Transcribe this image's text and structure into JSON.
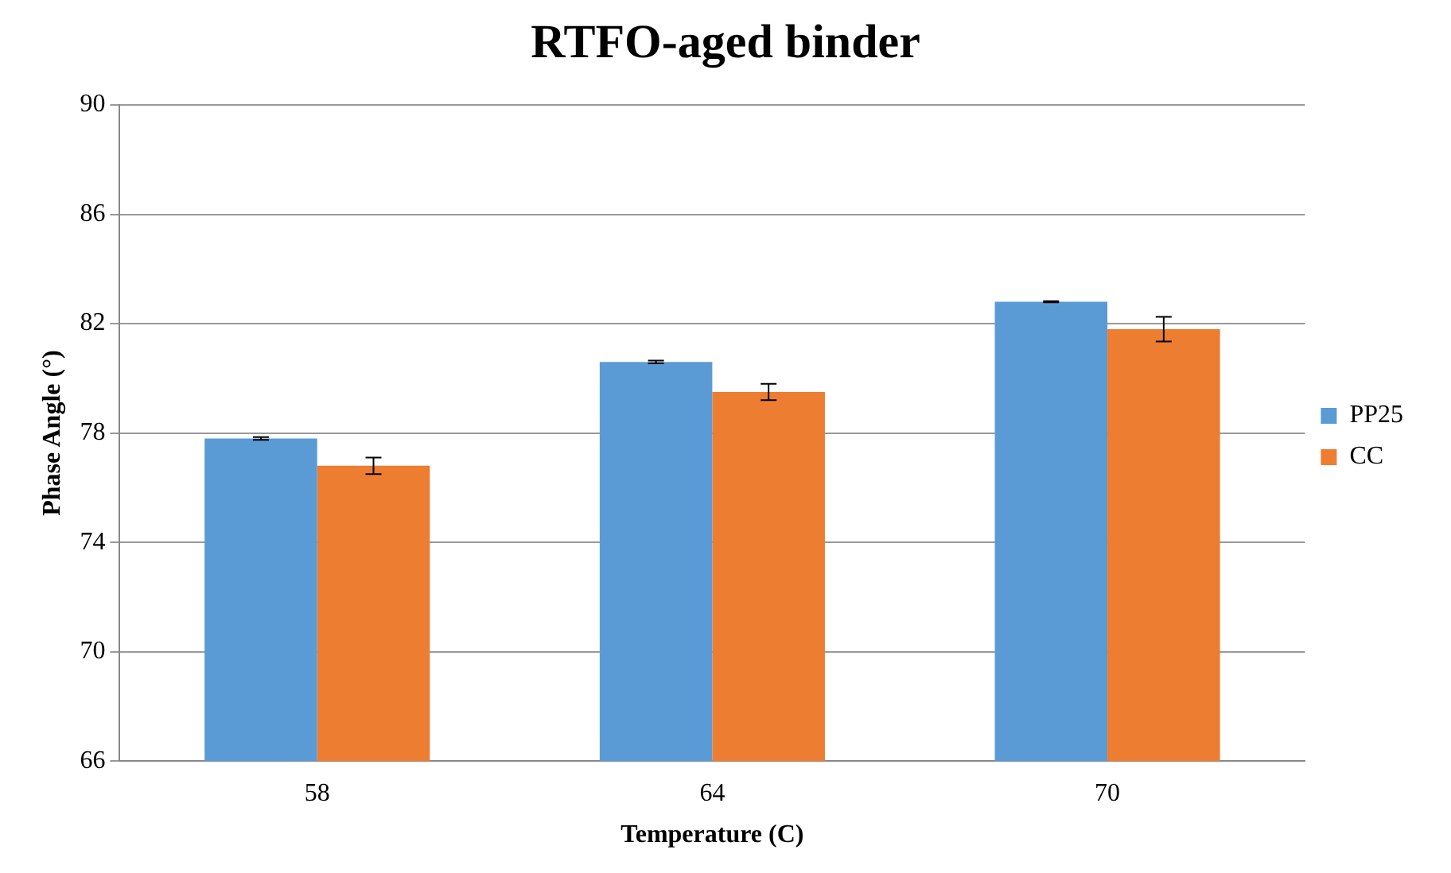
{
  "chart_data": {
    "type": "bar",
    "title": "RTFO-aged binder",
    "xlabel": "Temperature (C)",
    "ylabel": "Phase Angle (°)",
    "categories": [
      "58",
      "64",
      "70"
    ],
    "series": [
      {
        "name": "PP25",
        "color": "#5b9bd5",
        "values": [
          77.8,
          80.6,
          82.8
        ],
        "errors": [
          0.05,
          0.05,
          0.02
        ]
      },
      {
        "name": "CC",
        "color": "#ed7d31",
        "values": [
          76.8,
          79.5,
          81.8
        ],
        "errors": [
          0.3,
          0.3,
          0.45
        ]
      }
    ],
    "ylim": [
      66,
      90
    ],
    "yticks": [
      66,
      70,
      74,
      78,
      82,
      86,
      90
    ],
    "grid": "y",
    "legend": "right"
  }
}
